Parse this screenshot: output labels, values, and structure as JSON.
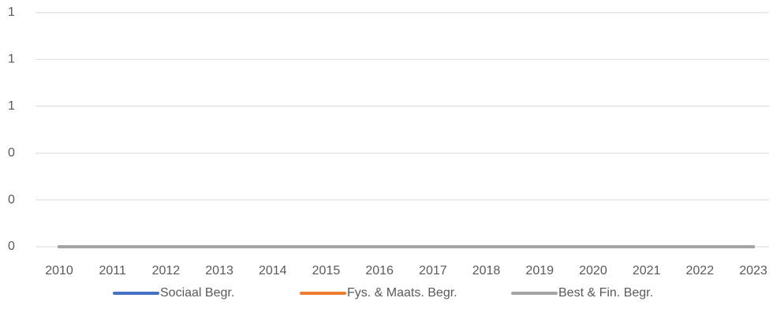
{
  "chart_data": {
    "type": "line",
    "categories": [
      "2010",
      "2011",
      "2012",
      "2013",
      "2014",
      "2015",
      "2016",
      "2017",
      "2018",
      "2019",
      "2020",
      "2021",
      "2022",
      "2023"
    ],
    "series": [
      {
        "name": "Sociaal Begr.",
        "color": "#4472c4",
        "values": [
          0,
          0,
          0,
          0,
          0,
          0,
          0,
          0,
          0,
          0,
          0,
          0,
          0,
          0
        ]
      },
      {
        "name": "Fys. & Maats. Begr.",
        "color": "#ed7d31",
        "values": [
          0,
          0,
          0,
          0,
          0,
          0,
          0,
          0,
          0,
          0,
          0,
          0,
          0,
          0
        ]
      },
      {
        "name": "Best & Fin. Begr.",
        "color": "#a5a5a5",
        "values": [
          0,
          0,
          0,
          0,
          0,
          0,
          0,
          0,
          0,
          0,
          0,
          0,
          0,
          0
        ]
      }
    ],
    "ylim": [
      0,
      1
    ],
    "yticks": [
      0,
      {
        "value": 0.2,
        "label": "0"
      },
      {
        "value": 0.4,
        "label": "0"
      },
      {
        "value": 0.6,
        "label": "1"
      },
      {
        "value": 0.8,
        "label": "1"
      },
      1
    ],
    "grid": true,
    "legend": "bottom"
  }
}
